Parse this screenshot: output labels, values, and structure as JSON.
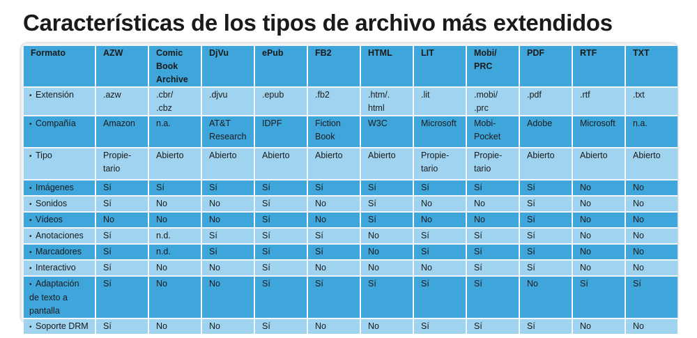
{
  "title": "Características de los tipos de archivo más extendidos",
  "colors": {
    "dark_row": "#3fa6db",
    "light_row": "#9fd3ef",
    "frame": "#eef3f7"
  },
  "table": {
    "header_label": "Formato",
    "formats": [
      "AZW",
      "Comic\nBook\nArchive",
      "DjVu",
      "ePub",
      "FB2",
      "HTML",
      "LIT",
      "Mobi/\nPRC",
      "PDF",
      "RTF",
      "TXT"
    ],
    "rows": [
      {
        "label": "Extensión",
        "cells": [
          ".azw",
          ".cbr/\n.cbz",
          ".djvu",
          ".epub",
          ".fb2",
          ".htm/.\nhtml",
          ".lit",
          ".mobi/\n.prc",
          ".pdf",
          ".rtf",
          ".txt"
        ]
      },
      {
        "label": "Compañía",
        "cells": [
          "Amazon",
          "n.a.",
          "AT&T\nResearch",
          "IDPF",
          "Fiction\nBook",
          "W3C",
          "Microsoft",
          "Mobi-\nPocket",
          "Adobe",
          "Microsoft",
          "n.a."
        ]
      },
      {
        "label": "Tipo",
        "cells": [
          "Propie-\ntario",
          "Abierto",
          "Abierto",
          "Abierto",
          "Abierto",
          "Abierto",
          "Propie-\ntario",
          "Propie-\ntario",
          "Abierto",
          "Abierto",
          "Abierto"
        ]
      },
      {
        "label": "Imágenes",
        "cells": [
          "Sí",
          "Sí",
          "Sí",
          "Sí",
          "Sí",
          "Sí",
          "Sí",
          "Sí",
          "Sí",
          "No",
          "No"
        ]
      },
      {
        "label": "Sonidos",
        "cells": [
          "Sí",
          "No",
          "No",
          "Sí",
          "No",
          "Sí",
          "No",
          "No",
          "Sí",
          "No",
          "No"
        ]
      },
      {
        "label": "Vídeos",
        "cells": [
          "No",
          "No",
          "No",
          "Sí",
          "No",
          "Sí",
          "No",
          "No",
          "Sí",
          "No",
          "No"
        ]
      },
      {
        "label": "Anotaciones",
        "cells": [
          "Sí",
          "n.d.",
          "Sí",
          "Sí",
          "Sí",
          "No",
          "Sí",
          "Sí",
          "Sí",
          "No",
          "No"
        ]
      },
      {
        "label": "Marcadores",
        "cells": [
          "Sí",
          "n.d.",
          "Sí",
          "Sí",
          "Sí",
          "No",
          "Sí",
          "Sí",
          "Sí",
          "No",
          "No"
        ]
      },
      {
        "label": "Interactivo",
        "cells": [
          "Sí",
          "No",
          "No",
          "Sí",
          "No",
          "No",
          "No",
          "Sí",
          "Sí",
          "No",
          "No"
        ]
      },
      {
        "label": "Adaptación\nde texto a\npantalla",
        "cells": [
          "Sí",
          "No",
          "No",
          "Sí",
          "Sí",
          "Sí",
          "Sí",
          "Sí",
          "No",
          "Sí",
          "Sí"
        ]
      },
      {
        "label": "Soporte DRM",
        "cells": [
          "Sí",
          "No",
          "No",
          "Sí",
          "No",
          "No",
          "Sí",
          "Sí",
          "Sí",
          "No",
          "No"
        ]
      }
    ]
  }
}
